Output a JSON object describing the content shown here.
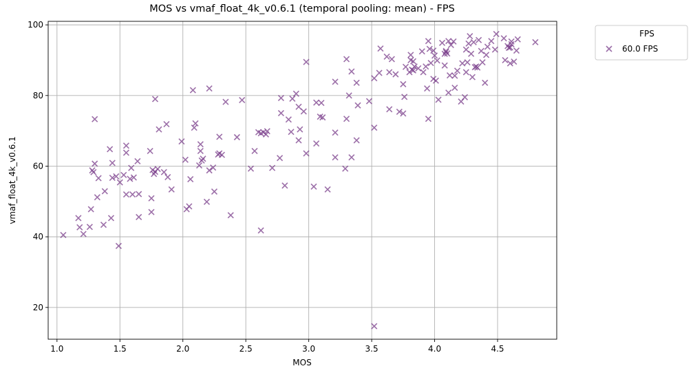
{
  "chart_data": {
    "type": "scatter",
    "title": "MOS vs vmaf_float_4k_v0.6.1 (temporal pooling: mean) - FPS",
    "xlabel": "MOS",
    "ylabel": "vmaf_float_4k_v0.6.1",
    "xlim": [
      0.93,
      4.97
    ],
    "ylim": [
      11,
      101
    ],
    "xticks": [
      1.0,
      1.5,
      2.0,
      2.5,
      3.0,
      3.5,
      4.0,
      4.5
    ],
    "xtick_labels": [
      "1.0",
      "1.5",
      "2.0",
      "2.5",
      "3.0",
      "3.5",
      "4.0",
      "4.5"
    ],
    "yticks": [
      20,
      40,
      60,
      80,
      100
    ],
    "ytick_labels": [
      "20",
      "40",
      "60",
      "80",
      "100"
    ],
    "grid": true,
    "legend": {
      "title": "FPS",
      "placement": "outside-top-right"
    },
    "marker_color": "#7b3f8c",
    "series": [
      {
        "name": "60.0 FPS",
        "marker": "x",
        "points": [
          [
            1.05,
            40.5
          ],
          [
            1.17,
            45.3
          ],
          [
            1.18,
            42.7
          ],
          [
            1.21,
            40.8
          ],
          [
            1.26,
            42.8
          ],
          [
            1.27,
            47.8
          ],
          [
            1.28,
            58.8
          ],
          [
            1.29,
            58.3
          ],
          [
            1.3,
            73.3
          ],
          [
            1.3,
            60.7
          ],
          [
            1.32,
            51.2
          ],
          [
            1.33,
            56.6
          ],
          [
            1.37,
            43.4
          ],
          [
            1.38,
            52.9
          ],
          [
            1.42,
            64.8
          ],
          [
            1.43,
            45.3
          ],
          [
            1.44,
            60.9
          ],
          [
            1.44,
            56.7
          ],
          [
            1.47,
            57.1
          ],
          [
            1.49,
            37.4
          ],
          [
            1.5,
            55.4
          ],
          [
            1.53,
            57.5
          ],
          [
            1.55,
            65.8
          ],
          [
            1.55,
            63.8
          ],
          [
            1.55,
            52.0
          ],
          [
            1.58,
            56.4
          ],
          [
            1.59,
            59.5
          ],
          [
            1.6,
            52.0
          ],
          [
            1.61,
            56.8
          ],
          [
            1.64,
            61.4
          ],
          [
            1.65,
            45.6
          ],
          [
            1.65,
            52.1
          ],
          [
            1.74,
            64.3
          ],
          [
            1.75,
            47.0
          ],
          [
            1.75,
            50.9
          ],
          [
            1.76,
            58.9
          ],
          [
            1.77,
            57.8
          ],
          [
            1.78,
            58.4
          ],
          [
            1.78,
            79.0
          ],
          [
            1.8,
            59.2
          ],
          [
            1.81,
            70.4
          ],
          [
            1.85,
            58.3
          ],
          [
            1.87,
            71.9
          ],
          [
            1.88,
            56.9
          ],
          [
            1.91,
            53.4
          ],
          [
            1.99,
            67.0
          ],
          [
            2.02,
            61.8
          ],
          [
            2.03,
            47.8
          ],
          [
            2.05,
            48.6
          ],
          [
            2.06,
            56.3
          ],
          [
            2.08,
            81.5
          ],
          [
            2.09,
            70.9
          ],
          [
            2.1,
            72.1
          ],
          [
            2.13,
            60.2
          ],
          [
            2.14,
            66.2
          ],
          [
            2.14,
            64.3
          ],
          [
            2.15,
            61.6
          ],
          [
            2.16,
            62.1
          ],
          [
            2.19,
            49.9
          ],
          [
            2.21,
            82.0
          ],
          [
            2.21,
            58.8
          ],
          [
            2.24,
            59.6
          ],
          [
            2.25,
            52.8
          ],
          [
            2.28,
            63.3
          ],
          [
            2.29,
            63.6
          ],
          [
            2.29,
            68.3
          ],
          [
            2.31,
            63.2
          ],
          [
            2.34,
            78.2
          ],
          [
            2.38,
            46.1
          ],
          [
            2.43,
            68.2
          ],
          [
            2.47,
            78.7
          ],
          [
            2.54,
            59.3
          ],
          [
            2.57,
            64.3
          ],
          [
            2.6,
            69.6
          ],
          [
            2.62,
            69.3
          ],
          [
            2.62,
            41.8
          ],
          [
            2.64,
            69.6
          ],
          [
            2.66,
            69.0
          ],
          [
            2.67,
            69.9
          ],
          [
            2.71,
            59.5
          ],
          [
            2.77,
            62.3
          ],
          [
            2.78,
            75.0
          ],
          [
            2.78,
            79.3
          ],
          [
            2.81,
            54.5
          ],
          [
            2.84,
            73.2
          ],
          [
            2.86,
            69.7
          ],
          [
            2.87,
            79.1
          ],
          [
            2.9,
            80.5
          ],
          [
            2.92,
            76.8
          ],
          [
            2.92,
            67.3
          ],
          [
            2.93,
            70.4
          ],
          [
            2.96,
            75.5
          ],
          [
            2.98,
            63.6
          ],
          [
            2.98,
            89.5
          ],
          [
            3.04,
            54.2
          ],
          [
            3.06,
            66.4
          ],
          [
            3.06,
            78.0
          ],
          [
            3.09,
            74.0
          ],
          [
            3.1,
            77.9
          ],
          [
            3.11,
            73.8
          ],
          [
            3.15,
            53.4
          ],
          [
            3.21,
            69.5
          ],
          [
            3.21,
            62.5
          ],
          [
            3.21,
            83.9
          ],
          [
            3.29,
            59.3
          ],
          [
            3.3,
            73.4
          ],
          [
            3.3,
            90.3
          ],
          [
            3.32,
            80.0
          ],
          [
            3.34,
            62.5
          ],
          [
            3.34,
            86.8
          ],
          [
            3.38,
            67.3
          ],
          [
            3.38,
            83.6
          ],
          [
            3.39,
            77.2
          ],
          [
            3.48,
            78.4
          ],
          [
            3.52,
            70.9
          ],
          [
            3.52,
            84.9
          ],
          [
            3.52,
            14.7
          ],
          [
            3.56,
            86.4
          ],
          [
            3.57,
            93.3
          ],
          [
            3.62,
            91.0
          ],
          [
            3.64,
            76.1
          ],
          [
            3.64,
            86.6
          ],
          [
            3.66,
            90.3
          ],
          [
            3.69,
            86.0
          ],
          [
            3.72,
            75.4
          ],
          [
            3.75,
            83.2
          ],
          [
            3.75,
            74.9
          ],
          [
            3.76,
            79.6
          ],
          [
            3.77,
            88.1
          ],
          [
            3.8,
            86.6
          ],
          [
            3.81,
            90.0
          ],
          [
            3.81,
            91.5
          ],
          [
            3.82,
            87.3
          ],
          [
            3.83,
            87.1
          ],
          [
            3.83,
            89.7
          ],
          [
            3.84,
            88.2
          ],
          [
            3.87,
            87.7
          ],
          [
            3.9,
            92.5
          ],
          [
            3.91,
            86.6
          ],
          [
            3.93,
            88.2
          ],
          [
            3.94,
            82.0
          ],
          [
            3.95,
            95.4
          ],
          [
            3.95,
            73.4
          ],
          [
            3.96,
            93.2
          ],
          [
            3.97,
            89.2
          ],
          [
            3.99,
            84.7
          ],
          [
            3.99,
            92.7
          ],
          [
            4.0,
            91.3
          ],
          [
            4.01,
            84.2
          ],
          [
            4.02,
            89.9
          ],
          [
            4.03,
            78.8
          ],
          [
            4.06,
            94.9
          ],
          [
            4.08,
            88.5
          ],
          [
            4.08,
            91.8
          ],
          [
            4.09,
            92.3
          ],
          [
            4.09,
            92.6
          ],
          [
            4.1,
            91.9
          ],
          [
            4.11,
            95.4
          ],
          [
            4.11,
            80.8
          ],
          [
            4.12,
            85.7
          ],
          [
            4.13,
            94.3
          ],
          [
            4.15,
            95.3
          ],
          [
            4.16,
            85.6
          ],
          [
            4.16,
            82.2
          ],
          [
            4.18,
            87.0
          ],
          [
            4.21,
            78.3
          ],
          [
            4.22,
            89.1
          ],
          [
            4.24,
            79.5
          ],
          [
            4.25,
            93.0
          ],
          [
            4.25,
            86.6
          ],
          [
            4.26,
            89.4
          ],
          [
            4.27,
            94.7
          ],
          [
            4.28,
            96.8
          ],
          [
            4.29,
            91.8
          ],
          [
            4.3,
            85.2
          ],
          [
            4.31,
            95.1
          ],
          [
            4.32,
            88.0
          ],
          [
            4.33,
            88.2
          ],
          [
            4.34,
            87.9
          ],
          [
            4.35,
            95.7
          ],
          [
            4.37,
            92.6
          ],
          [
            4.38,
            89.4
          ],
          [
            4.4,
            83.6
          ],
          [
            4.41,
            91.5
          ],
          [
            4.42,
            93.8
          ],
          [
            4.45,
            95.4
          ],
          [
            4.48,
            93.0
          ],
          [
            4.49,
            97.4
          ],
          [
            4.55,
            96.2
          ],
          [
            4.56,
            90.0
          ],
          [
            4.58,
            94.0
          ],
          [
            4.59,
            93.5
          ],
          [
            4.6,
            93.6
          ],
          [
            4.6,
            89.1
          ],
          [
            4.61,
            94.5
          ],
          [
            4.61,
            95.3
          ],
          [
            4.63,
            89.6
          ],
          [
            4.65,
            92.7
          ],
          [
            4.66,
            95.9
          ],
          [
            4.8,
            95.1
          ]
        ]
      }
    ]
  }
}
